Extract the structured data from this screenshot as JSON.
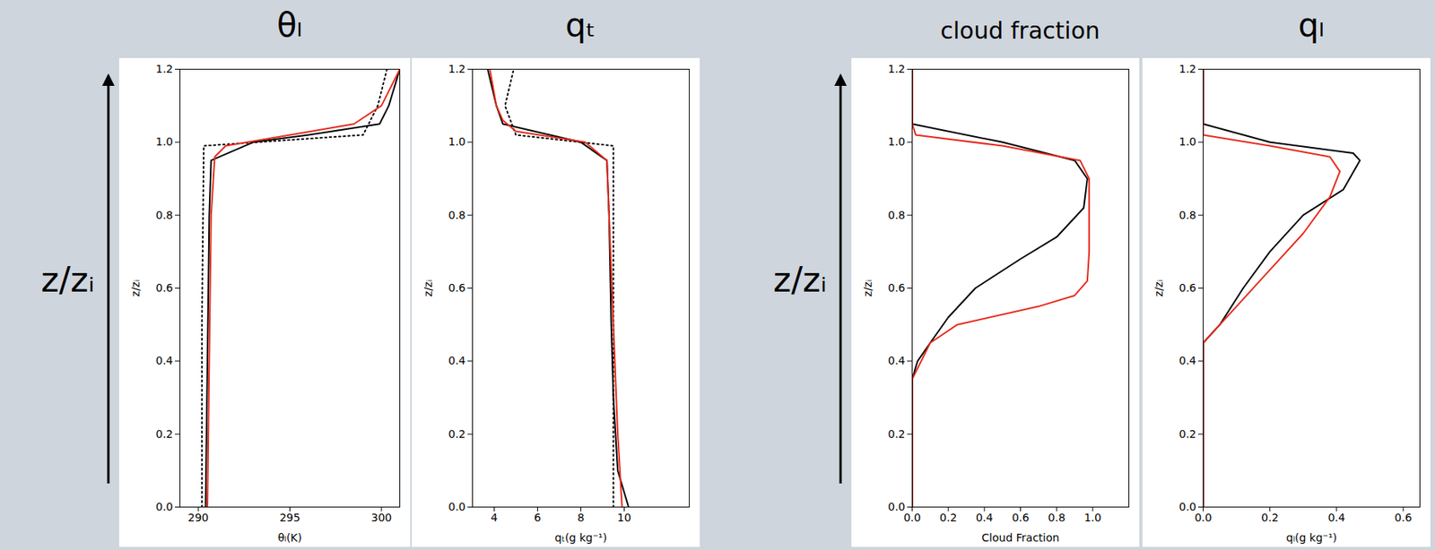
{
  "chart_data": [
    {
      "type": "line",
      "title": "θₗ",
      "annotations": [
        "z/zᵢ"
      ],
      "xlabel": "θₗ(K)",
      "ylabel": "z/zᵢ",
      "xlim": [
        289,
        301
      ],
      "xticks": [
        290,
        295,
        300
      ],
      "ylim": [
        0,
        1.2
      ],
      "yticks": [
        {
          "value": 0,
          "label": "0.0"
        },
        0.2,
        0.4,
        0.6,
        0.8,
        {
          "value": 1,
          "label": "1.0"
        },
        1.2
      ],
      "series": [
        {
          "color": "#000000",
          "line_style": "dotted",
          "x": [
            290.2,
            290.2,
            290.3,
            299.0,
            299.8,
            300.3
          ],
          "y": [
            0,
            0.5,
            0.99,
            1.02,
            1.1,
            1.2
          ]
        },
        {
          "color": "#000000",
          "line_style": "solid",
          "x": [
            290.4,
            290.5,
            290.6,
            290.7,
            293.0,
            296.0,
            299.9,
            300.4,
            301.0
          ],
          "y": [
            0,
            0.4,
            0.8,
            0.95,
            1.0,
            1.02,
            1.05,
            1.1,
            1.2
          ]
        },
        {
          "color": "#e8291c",
          "line_style": "solid",
          "x": [
            290.5,
            290.6,
            290.7,
            290.9,
            291.5,
            295.0,
            298.5,
            300.0,
            301.0
          ],
          "y": [
            0,
            0.4,
            0.8,
            0.96,
            0.99,
            1.02,
            1.05,
            1.1,
            1.2
          ]
        }
      ]
    },
    {
      "type": "line",
      "title": "qₜ",
      "xlabel": "qₜ(g kg⁻¹)",
      "ylabel": "z/zᵢ",
      "xlim": [
        3,
        13
      ],
      "xticks": [
        4,
        6,
        8,
        10
      ],
      "ylim": [
        0,
        1.2
      ],
      "yticks": [
        {
          "value": 0,
          "label": "0.0"
        },
        0.2,
        0.4,
        0.6,
        0.8,
        {
          "value": 1,
          "label": "1.0"
        },
        1.2
      ],
      "series": [
        {
          "color": "#000000",
          "line_style": "dotted",
          "x": [
            9.5,
            9.5,
            9.5,
            5.0,
            4.5,
            4.9
          ],
          "y": [
            0,
            0.5,
            0.99,
            1.02,
            1.1,
            1.2
          ]
        },
        {
          "color": "#000000",
          "line_style": "solid",
          "x": [
            10.2,
            9.7,
            9.5,
            9.4,
            9.3,
            9.2,
            8.0,
            4.4,
            4.1,
            3.7
          ],
          "y": [
            0,
            0.1,
            0.3,
            0.5,
            0.8,
            0.95,
            1.0,
            1.05,
            1.1,
            1.2
          ]
        },
        {
          "color": "#e8291c",
          "line_style": "solid",
          "x": [
            9.9,
            9.7,
            9.5,
            9.3,
            9.2,
            8.2,
            5.0,
            4.4,
            4.1,
            3.8
          ],
          "y": [
            0,
            0.2,
            0.5,
            0.8,
            0.95,
            1.0,
            1.03,
            1.06,
            1.1,
            1.2
          ]
        }
      ]
    },
    {
      "type": "line",
      "title": "cloud fraction",
      "annotations": [
        "z/zᵢ"
      ],
      "xlabel": "Cloud Fraction",
      "ylabel": "z/zᵢ",
      "xlim": [
        0,
        1.2
      ],
      "xticks": [
        {
          "value": 0,
          "label": "0.0"
        },
        0.2,
        0.4,
        0.6,
        0.8,
        {
          "value": 1,
          "label": "1.0"
        }
      ],
      "ylim": [
        0,
        1.2
      ],
      "yticks": [
        {
          "value": 0,
          "label": "0.0"
        },
        0.2,
        0.4,
        0.6,
        0.8,
        {
          "value": 1,
          "label": "1.0"
        },
        1.2
      ],
      "series": [
        {
          "color": "#000000",
          "line_style": "solid",
          "x": [
            0,
            0,
            0.03,
            0.1,
            0.2,
            0.35,
            0.6,
            0.8,
            0.95,
            0.97,
            0.9,
            0.5,
            0,
            0
          ],
          "y": [
            0,
            0.35,
            0.4,
            0.45,
            0.52,
            0.6,
            0.68,
            0.74,
            0.82,
            0.9,
            0.95,
            1.0,
            1.05,
            1.2
          ]
        },
        {
          "color": "#e8291c",
          "line_style": "solid",
          "x": [
            0,
            0,
            0.1,
            0.25,
            0.7,
            0.9,
            0.97,
            0.98,
            0.98,
            0.93,
            0.5,
            0.02,
            0,
            0
          ],
          "y": [
            0,
            0.35,
            0.45,
            0.5,
            0.55,
            0.58,
            0.62,
            0.7,
            0.9,
            0.95,
            0.99,
            1.02,
            1.05,
            1.2
          ]
        }
      ]
    },
    {
      "type": "line",
      "title": "qₗ",
      "xlabel": "qₗ(g kg⁻¹)",
      "ylabel": "z/zᵢ",
      "xlim": [
        0,
        0.65
      ],
      "xticks": [
        {
          "value": 0,
          "label": "0.0"
        },
        0.2,
        0.4,
        0.6
      ],
      "ylim": [
        0,
        1.2
      ],
      "yticks": [
        {
          "value": 0,
          "label": "0.0"
        },
        0.2,
        0.4,
        0.6,
        0.8,
        {
          "value": 1,
          "label": "1.0"
        },
        1.2
      ],
      "series": [
        {
          "color": "#000000",
          "line_style": "solid",
          "x": [
            0,
            0,
            0.05,
            0.12,
            0.2,
            0.3,
            0.42,
            0.47,
            0.45,
            0.2,
            0,
            0
          ],
          "y": [
            0,
            0.45,
            0.5,
            0.6,
            0.7,
            0.8,
            0.87,
            0.95,
            0.97,
            1.0,
            1.05,
            1.2
          ]
        },
        {
          "color": "#e8291c",
          "line_style": "solid",
          "x": [
            0,
            0,
            0.1,
            0.2,
            0.3,
            0.38,
            0.41,
            0.38,
            0.2,
            0,
            0
          ],
          "y": [
            0,
            0.45,
            0.55,
            0.65,
            0.75,
            0.85,
            0.92,
            0.96,
            0.99,
            1.02,
            1.2
          ]
        }
      ]
    }
  ]
}
